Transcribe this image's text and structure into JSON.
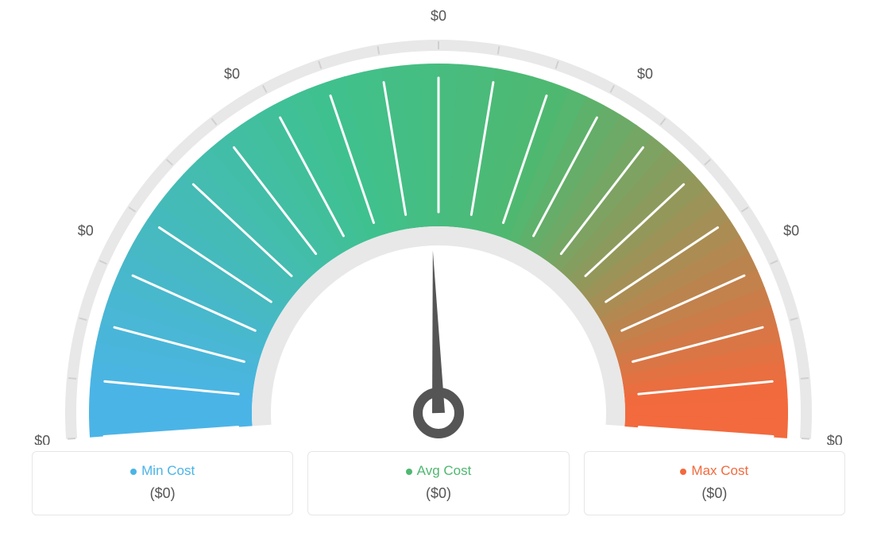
{
  "gauge": {
    "type": "gauge",
    "background_color": "#ffffff",
    "outer_ring_color": "#e8e8e8",
    "gradient_colors": [
      "#4bb4e6",
      "#3fc18f",
      "#4fb870",
      "#f26a3d"
    ],
    "gradient_stops": [
      0,
      0.38,
      0.62,
      1
    ],
    "tick_color_inner": "#ffffff",
    "tick_color_outer": "#d0d0d0",
    "needle_color": "#555555",
    "needle_angle_deg": -88,
    "tick_labels": [
      "$0",
      "$0",
      "$0",
      "$0",
      "$0",
      "$0",
      "$0"
    ],
    "tick_label_color": "#555555",
    "tick_label_fontsize": 18,
    "num_minor_ticks": 21,
    "outer_radius": 440,
    "inner_radius": 235,
    "ring_gap": 16,
    "ring_width": 14
  },
  "legend": {
    "items": [
      {
        "label": "Min Cost",
        "value": "($0)",
        "color": "#4bb4e6"
      },
      {
        "label": "Avg Cost",
        "value": "($0)",
        "color": "#4fb870"
      },
      {
        "label": "Max Cost",
        "value": "($0)",
        "color": "#f26a3d"
      }
    ],
    "border_color": "#e6e6e6",
    "label_fontsize": 17,
    "value_fontsize": 18,
    "value_color": "#555555"
  }
}
